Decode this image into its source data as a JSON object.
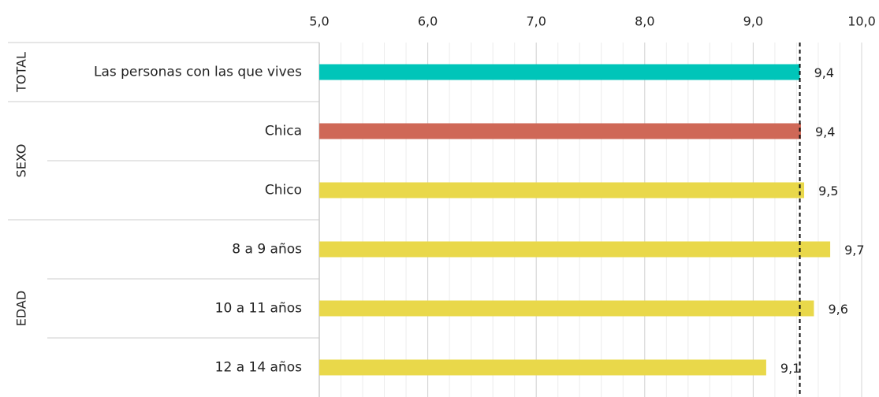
{
  "chart_data": {
    "type": "hbar",
    "categories": [
      "Las personas con las que vives",
      "Chica",
      "Chico",
      "8 a 9 años",
      "10 a 11 años",
      "12 a 14 años"
    ],
    "values": [
      9.43,
      9.44,
      9.47,
      9.71,
      9.56,
      9.12
    ],
    "value_labels": [
      "9,4",
      "9,4",
      "9,5",
      "9,7",
      "9,6",
      "9,1"
    ],
    "colors": [
      "#00c5b9",
      "#cf6857",
      "#e9d84a",
      "#e9d84a",
      "#e9d84a",
      "#e9d84a"
    ],
    "groups": [
      {
        "name": "TOTAL",
        "size": 1
      },
      {
        "name": "SEXO",
        "size": 2
      },
      {
        "name": "EDAD",
        "size": 3
      }
    ],
    "xlim": [
      5,
      10
    ],
    "xticks": [
      {
        "value": 5,
        "label": "5,0"
      },
      {
        "value": 6,
        "label": "6,0"
      },
      {
        "value": 7,
        "label": "7,0"
      },
      {
        "value": 8,
        "label": "8,0"
      },
      {
        "value": 9,
        "label": "9,0"
      },
      {
        "value": 10,
        "label": "10,0"
      }
    ],
    "minor_step": 0.2,
    "reference_line": 9.43,
    "grid": true
  }
}
